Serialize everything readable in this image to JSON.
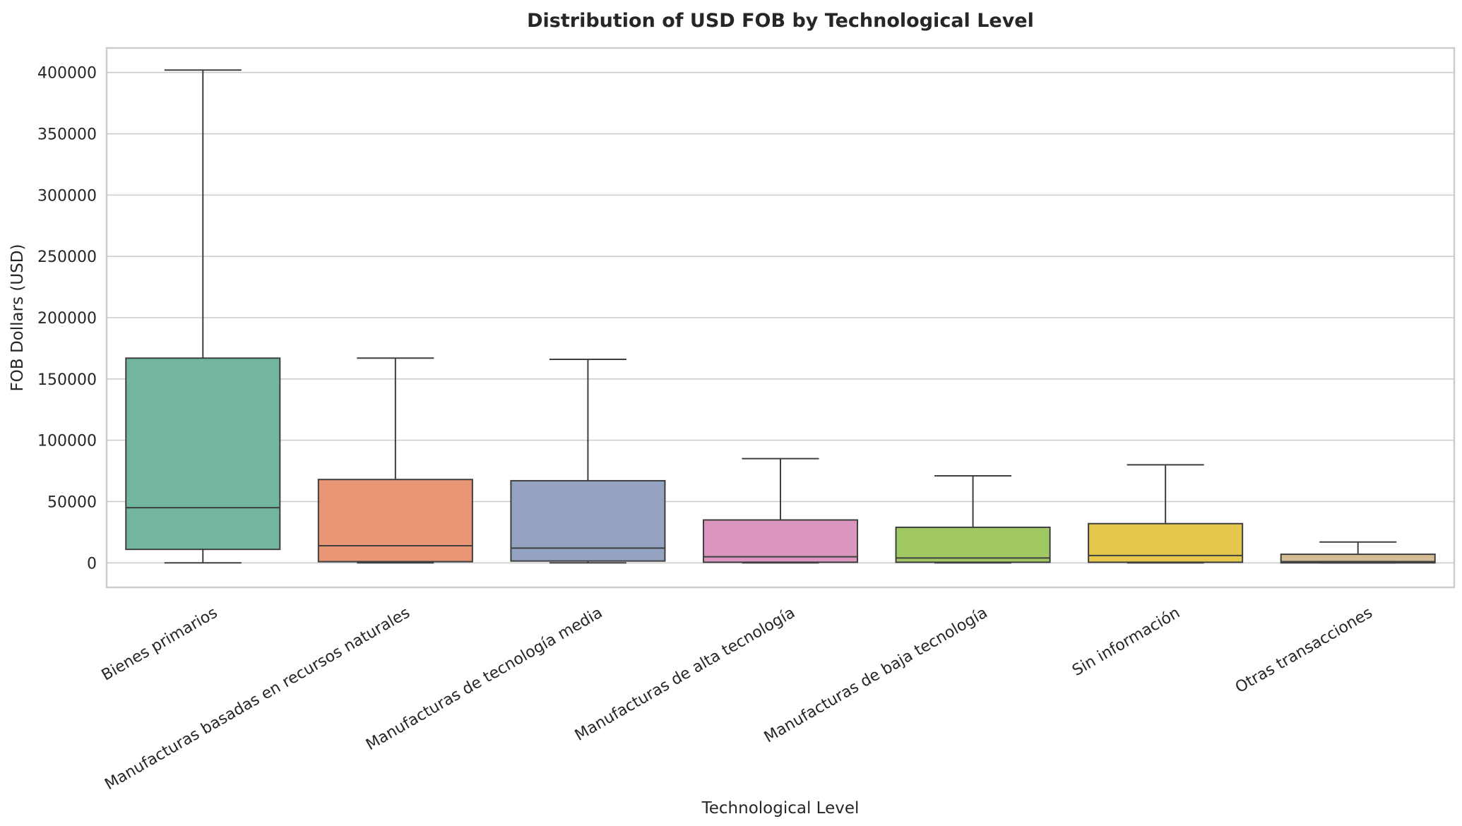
{
  "chart_data": {
    "type": "box",
    "title": "Distribution of USD FOB by Technological Level",
    "xlabel": "Technological Level",
    "ylabel": "FOB Dollars (USD)",
    "ylim": [
      -20000,
      420000
    ],
    "yticks": [
      0,
      50000,
      100000,
      150000,
      200000,
      250000,
      300000,
      350000,
      400000
    ],
    "ytick_labels": [
      "0",
      "50000",
      "100000",
      "150000",
      "200000",
      "250000",
      "300000",
      "350000",
      "400000"
    ],
    "grid": true,
    "categories": [
      "Bienes primarios",
      "Manufacturas basadas en recursos naturales",
      "Manufacturas de tecnología media",
      "Manufacturas de alta tecnología",
      "Manufacturas de baja tecnología",
      "Sin información",
      "Otras transacciones"
    ],
    "colors": [
      "#72b6a1",
      "#e99675",
      "#95a3c3",
      "#db96c0",
      "#a0c863",
      "#e5c84b",
      "#d6bd96"
    ],
    "series": [
      {
        "name": "Bienes primarios",
        "whisker_low": 0,
        "q1": 11000,
        "median": 45000,
        "q3": 167000,
        "whisker_high": 402000
      },
      {
        "name": "Manufacturas basadas en recursos naturales",
        "whisker_low": 0,
        "q1": 1000,
        "median": 14000,
        "q3": 68000,
        "whisker_high": 167000
      },
      {
        "name": "Manufacturas de tecnología media",
        "whisker_low": 0,
        "q1": 1500,
        "median": 12000,
        "q3": 67000,
        "whisker_high": 166000
      },
      {
        "name": "Manufacturas de alta tecnología",
        "whisker_low": 0,
        "q1": 500,
        "median": 5000,
        "q3": 35000,
        "whisker_high": 85000
      },
      {
        "name": "Manufacturas de baja tecnología",
        "whisker_low": 0,
        "q1": 500,
        "median": 4000,
        "q3": 29000,
        "whisker_high": 71000
      },
      {
        "name": "Sin información",
        "whisker_low": 0,
        "q1": 500,
        "median": 6000,
        "q3": 32000,
        "whisker_high": 80000
      },
      {
        "name": "Otras transacciones",
        "whisker_low": 0,
        "q1": 0,
        "median": 1000,
        "q3": 7000,
        "whisker_high": 17000
      }
    ]
  }
}
